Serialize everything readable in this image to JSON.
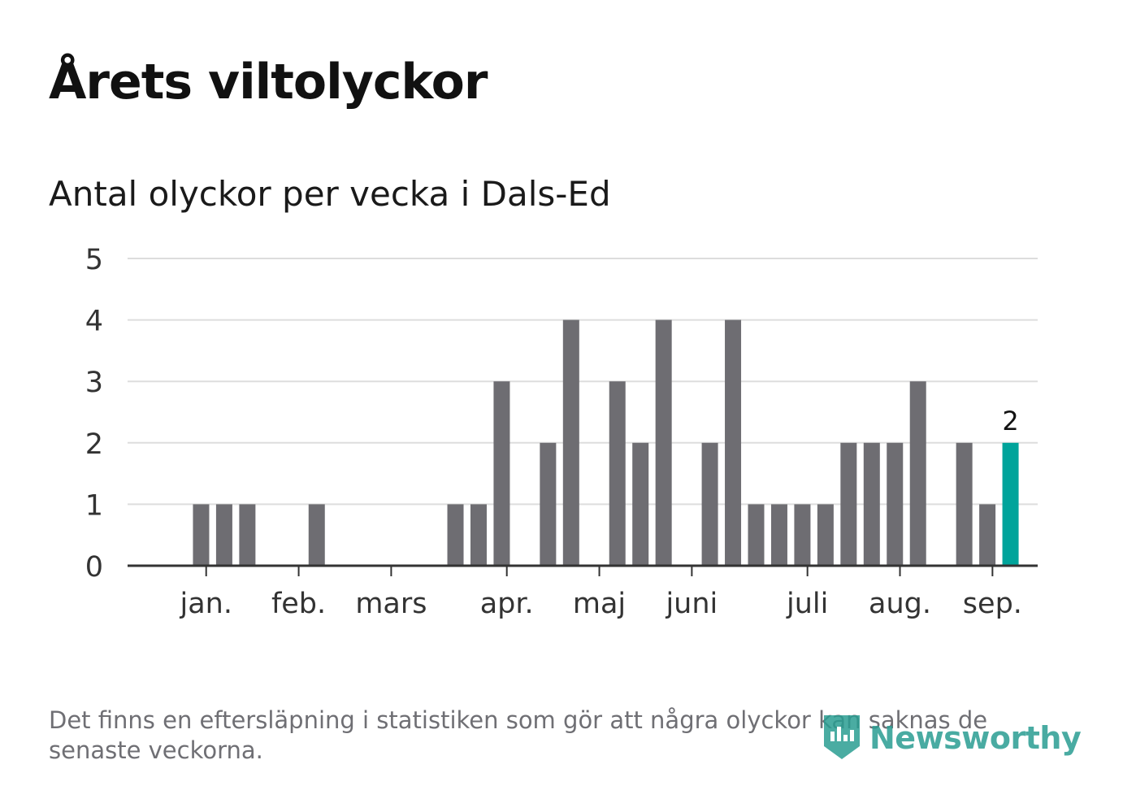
{
  "title": "Årets viltolyckor",
  "subtitle": "Antal olyckor per vecka i Dals-Ed",
  "footnote": "Det finns en eftersläpning i statistiken som gör att några olyckor kan saknas de senaste veckorna.",
  "logo": {
    "text": "Newsworthy",
    "icon": "newsworthy-logo-icon"
  },
  "colors": {
    "bar": "#6e6d72",
    "highlight": "#00a49b",
    "grid": "#dddddd",
    "axis": "#333333",
    "logo": "#2a9d92"
  },
  "chart_data": {
    "type": "bar",
    "xlabel": "",
    "ylabel": "",
    "ylim": [
      0,
      5
    ],
    "y_ticks": [
      0,
      1,
      2,
      3,
      4,
      5
    ],
    "grid": true,
    "x": [
      1,
      2,
      3,
      4,
      5,
      6,
      7,
      8,
      9,
      10,
      11,
      12,
      13,
      14,
      15,
      16,
      17,
      18,
      19,
      20,
      21,
      22,
      23,
      24,
      25,
      26,
      27,
      28,
      29,
      30,
      31,
      32,
      33,
      34,
      35,
      36,
      37
    ],
    "values": [
      0,
      1,
      1,
      1,
      0,
      0,
      1,
      0,
      0,
      0,
      0,
      0,
      1,
      1,
      3,
      0,
      2,
      4,
      0,
      3,
      2,
      4,
      0,
      2,
      4,
      1,
      1,
      1,
      1,
      2,
      2,
      2,
      3,
      0,
      2,
      1,
      2
    ],
    "highlight_index": 36,
    "highlight_label": "2",
    "month_ticks": [
      {
        "label": "jan.",
        "pos": 2.22
      },
      {
        "label": "feb.",
        "pos": 6.22
      },
      {
        "label": "mars",
        "pos": 10.22
      },
      {
        "label": "apr.",
        "pos": 15.22
      },
      {
        "label": "maj",
        "pos": 19.22
      },
      {
        "label": "juni",
        "pos": 23.22
      },
      {
        "label": "juli",
        "pos": 28.22
      },
      {
        "label": "aug.",
        "pos": 32.22
      },
      {
        "label": "sep.",
        "pos": 36.22
      }
    ]
  }
}
